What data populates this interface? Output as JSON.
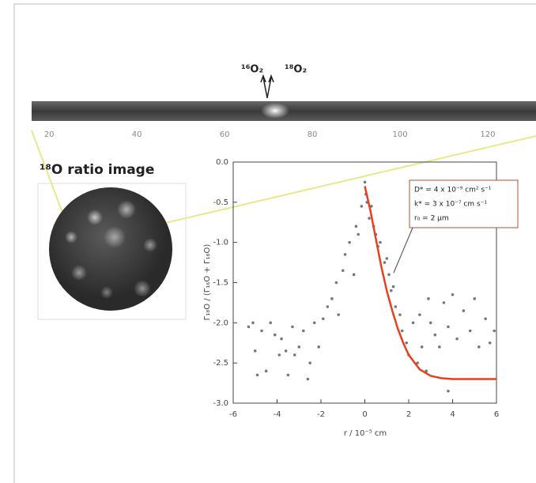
{
  "figure": {
    "strip_labels": [
      "¹⁶O₂",
      "¹⁸O₂"
    ],
    "inset_title": "¹⁸O ratio image",
    "strip_scale": {
      "lim": [
        16,
        131
      ],
      "ticks": [
        20,
        40,
        60,
        80,
        100,
        120
      ]
    }
  },
  "chart_data": {
    "type": "scatter",
    "x_label": "r / 10⁻⁵ cm",
    "y_label": "Γ₁₈O / (Γ₁₆O + Γ₁₈O)",
    "xlim": [
      -6,
      6
    ],
    "ylim": [
      -3,
      0
    ],
    "xticks": [
      -6,
      -4,
      -2,
      0,
      2,
      4,
      6
    ],
    "yticks": [
      {
        "value": 0,
        "label": "0.0"
      },
      -0.5,
      {
        "value": -1,
        "label": "-1.0"
      },
      -1.5,
      {
        "value": -2,
        "label": "-2.0"
      },
      -2.5,
      {
        "value": -3,
        "label": "-3.0"
      }
    ],
    "annotation": [
      "D* = 4 x 10⁻⁹ cm² s⁻¹",
      "k* = 3 x 10⁻⁷ cm s⁻¹",
      "r₀ = 2 μm"
    ],
    "scatter": {
      "color": "#777777",
      "x": [
        -5.3,
        -5.1,
        -5.0,
        -4.9,
        -4.7,
        -4.5,
        -4.3,
        -4.1,
        -3.9,
        -3.8,
        -3.6,
        -3.5,
        -3.3,
        -3.2,
        -3.0,
        -2.8,
        -2.6,
        -2.5,
        -2.3,
        -2.1,
        -1.9,
        -1.7,
        -1.5,
        -1.3,
        -1.2,
        -1.0,
        -0.9,
        -0.7,
        -0.5,
        -0.4,
        -0.3,
        -0.15,
        0,
        0.05,
        0.1,
        0.2,
        0.3,
        0.4,
        0.5,
        0.6,
        0.7,
        0.9,
        1.0,
        1.1,
        1.2,
        1.3,
        1.4,
        1.6,
        1.7,
        1.9,
        2.0,
        2.2,
        2.4,
        2.6,
        2.8,
        3.0,
        3.2,
        3.4,
        3.6,
        3.8,
        4.0,
        4.2,
        4.5,
        4.8,
        5.0,
        5.2,
        5.5,
        5.7,
        5.9,
        3.8,
        2.5,
        2.9
      ],
      "y": [
        -2.05,
        -2.0,
        -2.35,
        -2.65,
        -2.1,
        -2.6,
        -2.0,
        -2.15,
        -2.4,
        -2.2,
        -2.35,
        -2.65,
        -2.05,
        -2.4,
        -2.3,
        -2.1,
        -2.7,
        -2.5,
        -2.0,
        -2.3,
        -1.95,
        -1.8,
        -1.7,
        -1.5,
        -1.9,
        -1.35,
        -1.15,
        -1.0,
        -1.4,
        -0.8,
        -0.9,
        -0.55,
        -0.25,
        -0.4,
        -0.5,
        -0.7,
        -0.55,
        -0.8,
        -0.9,
        -1.05,
        -1.0,
        -1.25,
        -1.2,
        -1.4,
        -1.6,
        -1.55,
        -1.8,
        -1.9,
        -2.1,
        -2.25,
        -2.4,
        -2.0,
        -2.5,
        -2.3,
        -2.6,
        -2.0,
        -2.15,
        -2.3,
        -1.75,
        -2.05,
        -1.65,
        -2.2,
        -1.85,
        -2.1,
        -1.7,
        -2.3,
        -1.95,
        -2.25,
        -2.1,
        -2.85,
        -1.9,
        -1.7
      ]
    },
    "fit": {
      "color": "#e8401c",
      "x": [
        0,
        0.25,
        0.5,
        0.75,
        1,
        1.25,
        1.5,
        1.75,
        2,
        2.5,
        3,
        3.5,
        4,
        5,
        6
      ],
      "y": [
        -0.3,
        -0.6,
        -0.95,
        -1.3,
        -1.6,
        -1.85,
        -2.07,
        -2.25,
        -2.4,
        -2.58,
        -2.66,
        -2.69,
        -2.7,
        -2.7,
        -2.7
      ]
    }
  }
}
